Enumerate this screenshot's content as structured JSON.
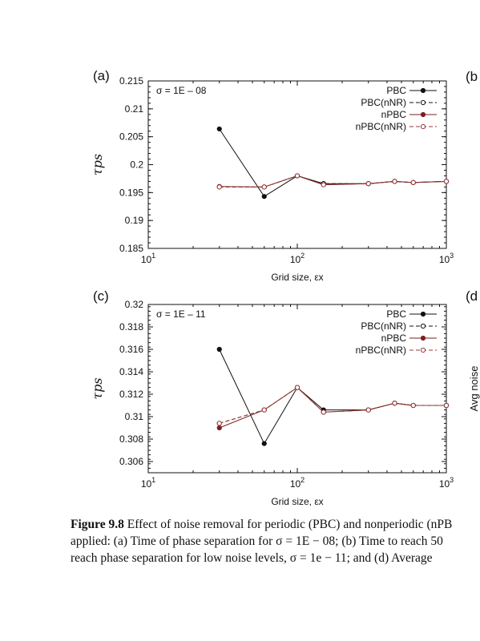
{
  "chart_data": [
    {
      "type": "line",
      "panel_label": "(a)",
      "annotation": "σ = 1E – 08",
      "xlabel": "Grid size, εx",
      "ylabel": "τps",
      "xscale": "log",
      "xlim": [
        10,
        1000
      ],
      "ylim": [
        0.185,
        0.215
      ],
      "x_ticks": [
        "10^1",
        "10^2",
        "10^3"
      ],
      "y_ticks": [
        "0.215",
        "0.21",
        "0.205",
        "0.2",
        "0.195",
        "0.19",
        "0.185"
      ],
      "y_tick_values": [
        0.215,
        0.21,
        0.205,
        0.2,
        0.195,
        0.19,
        0.185
      ],
      "legend_position": "top-right",
      "x": [
        30,
        60,
        100,
        150,
        300,
        450,
        600,
        1000
      ],
      "series": [
        {
          "name": "PBC",
          "color": "#111111",
          "dash": "solid",
          "filled": true,
          "values": [
            0.2064,
            0.1943,
            0.198,
            0.1966,
            0.1966,
            0.197,
            0.1968,
            0.197
          ]
        },
        {
          "name": "PBC(nNR)",
          "color": "#111111",
          "dash": "dashed",
          "filled": false,
          "values": [
            0.196,
            0.196,
            0.198,
            0.1966,
            0.1966,
            0.197,
            0.1968,
            0.197
          ]
        },
        {
          "name": "nPBC",
          "color": "#7a1f1f",
          "dash": "solid",
          "filled": true,
          "values": [
            0.1961,
            0.196,
            0.198,
            0.1964,
            0.1966,
            0.197,
            0.1968,
            0.197
          ]
        },
        {
          "name": "nPBC(nNR)",
          "color": "#9a3a3a",
          "dash": "dashed",
          "filled": false,
          "values": [
            0.196,
            0.196,
            0.198,
            0.1964,
            0.1966,
            0.197,
            0.1968,
            0.197
          ]
        }
      ]
    },
    {
      "type": "line",
      "panel_label": "(c)",
      "annotation": "σ = 1E – 11",
      "xlabel": "Grid size, εx",
      "ylabel": "τps",
      "xscale": "log",
      "xlim": [
        10,
        1000
      ],
      "ylim": [
        0.305,
        0.32
      ],
      "x_ticks": [
        "10^1",
        "10^2",
        "10^3"
      ],
      "y_ticks": [
        "0.32",
        "0.318",
        "0.316",
        "0.314",
        "0.312",
        "0.31",
        "0.308",
        "0.306"
      ],
      "y_tick_values": [
        0.32,
        0.318,
        0.316,
        0.314,
        0.312,
        0.31,
        0.308,
        0.306
      ],
      "legend_position": "top-right",
      "x": [
        30,
        60,
        100,
        150,
        300,
        450,
        600,
        1000
      ],
      "series": [
        {
          "name": "PBC",
          "color": "#111111",
          "dash": "solid",
          "filled": true,
          "values": [
            0.316,
            0.3076,
            0.3126,
            0.3106,
            0.3106,
            0.3112,
            0.311,
            0.311
          ]
        },
        {
          "name": "PBC(nNR)",
          "color": "#111111",
          "dash": "dashed",
          "filled": false,
          "values": [
            0.3094,
            0.3106,
            0.3126,
            0.3104,
            0.3106,
            0.3112,
            0.311,
            0.311
          ]
        },
        {
          "name": "nPBC",
          "color": "#7a1f1f",
          "dash": "solid",
          "filled": true,
          "values": [
            0.309,
            0.3106,
            0.3126,
            0.3104,
            0.3106,
            0.3112,
            0.311,
            0.311
          ]
        },
        {
          "name": "nPBC(nNR)",
          "color": "#9a3a3a",
          "dash": "dashed",
          "filled": false,
          "values": [
            0.3094,
            0.3106,
            0.3126,
            0.3104,
            0.3106,
            0.3112,
            0.311,
            0.311
          ]
        }
      ]
    }
  ],
  "partial_panels": [
    {
      "label": "(b",
      "ylabel": ""
    },
    {
      "label": "(d",
      "ylabel": "Avg noise"
    }
  ],
  "caption": {
    "label": "Figure 9.8",
    "line1": " Effect of noise removal for periodic (PBC) and nonperiodic (nPB",
    "line2": "applied: (a) Time of phase separation for σ = 1E − 08; (b) Time to reach 50",
    "line3": "reach phase separation for low noise levels, σ = 1e − 11; and (d) Average"
  }
}
